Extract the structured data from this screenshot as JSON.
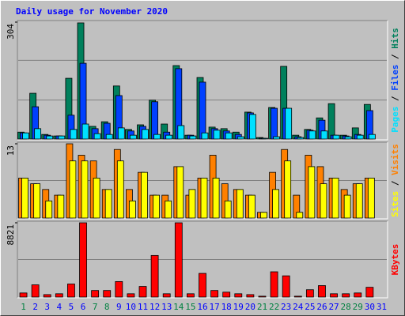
{
  "title": "Daily usage for November 2020",
  "legend_separator": " / ",
  "chart_data": [
    {
      "type": "bar",
      "ylim": [
        0,
        304
      ],
      "yticks": [
        304
      ],
      "series": [
        {
          "name": "Hits",
          "color": "#00805c",
          "values": [
            18,
            119,
            12,
            8,
            158,
            302,
            33,
            45,
            138,
            25,
            37,
            101,
            39,
            191,
            10,
            160,
            31,
            27,
            18,
            70,
            4,
            82,
            189,
            10,
            25,
            55,
            92,
            10,
            29,
            90,
            0
          ]
        },
        {
          "name": "Files",
          "color": "#0040ff",
          "values": [
            16,
            84,
            10,
            8,
            62,
            197,
            27,
            41,
            113,
            21,
            33,
            97,
            18,
            183,
            10,
            148,
            27,
            21,
            12,
            68,
            2,
            80,
            80,
            6,
            23,
            49,
            10,
            8,
            12,
            74,
            0
          ]
        },
        {
          "name": "Pages",
          "color": "#00e0ff",
          "values": [
            16,
            27,
            8,
            8,
            25,
            39,
            14,
            12,
            29,
            10,
            25,
            12,
            10,
            35,
            8,
            16,
            23,
            16,
            6,
            64,
            2,
            6,
            80,
            4,
            21,
            21,
            10,
            6,
            10,
            12,
            0
          ]
        }
      ]
    },
    {
      "type": "bar",
      "ylim": [
        0,
        13
      ],
      "yticks": [
        13
      ],
      "series": [
        {
          "name": "Visits",
          "color": "#ff8000",
          "values": [
            7,
            6,
            5,
            4,
            13,
            11,
            10,
            5,
            12,
            5,
            8,
            4,
            4,
            9,
            4,
            7,
            11,
            6,
            5,
            4,
            1,
            8,
            12,
            4,
            11,
            9,
            7,
            5,
            6,
            7,
            0
          ]
        },
        {
          "name": "Sites",
          "color": "#ffff00",
          "values": [
            7,
            6,
            3,
            4,
            10,
            10,
            7,
            5,
            10,
            3,
            8,
            4,
            3,
            9,
            5,
            7,
            7,
            3,
            5,
            4,
            1,
            5,
            10,
            1,
            9,
            6,
            7,
            4,
            6,
            7,
            0
          ]
        }
      ]
    },
    {
      "type": "bar",
      "ylim": [
        0,
        8821
      ],
      "yticks": [
        8821
      ],
      "categories": [
        "1",
        "2",
        "3",
        "4",
        "5",
        "6",
        "7",
        "8",
        "9",
        "10",
        "11",
        "12",
        "13",
        "14",
        "15",
        "16",
        "17",
        "18",
        "19",
        "20",
        "21",
        "22",
        "23",
        "24",
        "25",
        "26",
        "27",
        "28",
        "29",
        "30",
        "31"
      ],
      "category_colors": [
        "#008040",
        "#0000ff",
        "#0000ff",
        "#0000ff",
        "#0000ff",
        "#0000ff",
        "#008040",
        "#008040",
        "#0000ff",
        "#0000ff",
        "#0000ff",
        "#0000ff",
        "#0000ff",
        "#008040",
        "#008040",
        "#0000ff",
        "#0000ff",
        "#0000ff",
        "#0000ff",
        "#0000ff",
        "#008040",
        "#008040",
        "#0000ff",
        "#0000ff",
        "#0000ff",
        "#0000ff",
        "#0000ff",
        "#008040",
        "#008040",
        "#0000ff",
        "#0000ff"
      ],
      "series": [
        {
          "name": "KBytes",
          "color": "#ff0000",
          "values": [
            485,
            1450,
            290,
            390,
            1550,
            8821,
            780,
            780,
            1840,
            390,
            1260,
            4940,
            390,
            8821,
            390,
            2810,
            780,
            580,
            390,
            290,
            100,
            3000,
            2520,
            100,
            870,
            1360,
            390,
            390,
            485,
            1160,
            0
          ]
        }
      ]
    }
  ]
}
